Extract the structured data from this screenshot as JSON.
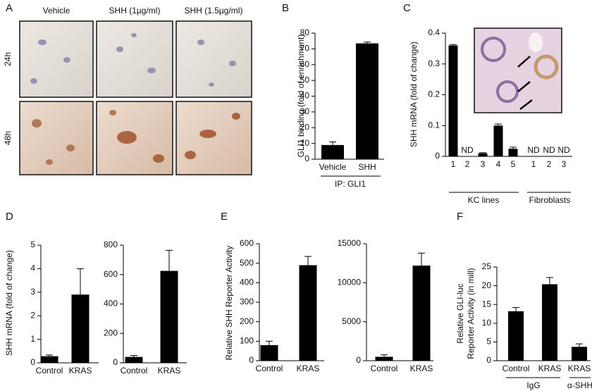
{
  "figure_images": {
    "panel": "A",
    "columns": [
      "Vehicle",
      "SHH (1µg/ml)",
      "SHH (1.5µg/ml)"
    ],
    "rows": [
      "24h",
      "48h"
    ]
  },
  "chart_data": [
    {
      "type": "bar",
      "panel": "B",
      "ylabel": "GLI1 binding (fold of enrichment)",
      "xlabel": "IP: GLI1",
      "categories": [
        "Vehicle",
        "SHH"
      ],
      "values": [
        9,
        73.5
      ],
      "errors": [
        2,
        0.8
      ],
      "color": "#000000",
      "ylim": [
        0,
        80
      ],
      "yticks": [
        0,
        10,
        20,
        30,
        40,
        50,
        60,
        70,
        80
      ]
    },
    {
      "type": "bar",
      "panel": "C",
      "ylabel": "SHH  mRNA (fold of change)",
      "categories": [
        "1",
        "2",
        "3",
        "4",
        "5",
        "1",
        "2",
        "3"
      ],
      "values": [
        0.36,
        null,
        0.01,
        0.1,
        0.025,
        null,
        null,
        null
      ],
      "value_labels": [
        null,
        "ND",
        null,
        null,
        null,
        "ND",
        "ND",
        "ND"
      ],
      "errors": [
        0.003,
        null,
        0.002,
        0.005,
        0.005,
        null,
        null,
        null
      ],
      "groups": [
        "KC lines",
        "Fibroblasts"
      ],
      "color": "#000000",
      "ylim": [
        0,
        0.4
      ],
      "yticks": [
        0,
        0.1,
        0.2,
        0.3,
        0.4
      ]
    },
    {
      "type": "bar",
      "panel": "D",
      "ylabel": "SHH  mRNA (fold of change)",
      "categories": [
        "Control",
        "KRAS"
      ],
      "values": [
        0.28,
        2.9
      ],
      "errors": [
        0.05,
        1.1
      ],
      "color": "#000000",
      "ylim": [
        0,
        5
      ],
      "yticks": [
        0,
        1,
        2,
        3,
        4,
        5
      ]
    },
    {
      "type": "bar",
      "categories": [
        "Control",
        "KRAS"
      ],
      "values": [
        40,
        625
      ],
      "errors": [
        10,
        140
      ],
      "color": "#000000",
      "ylim": [
        0,
        800
      ],
      "yticks": [
        0,
        200,
        400,
        600,
        800
      ]
    },
    {
      "type": "bar",
      "panel": "E",
      "ylabel": "Relative SHH Reporter Activity",
      "categories": [
        "Control",
        "KRAS"
      ],
      "values": [
        80,
        490
      ],
      "errors": [
        20,
        45
      ],
      "color": "#000000",
      "ylim": [
        0,
        600
      ],
      "yticks": [
        0,
        100,
        200,
        300,
        400,
        500,
        600
      ]
    },
    {
      "type": "bar",
      "categories": [
        "Control",
        "KRAS"
      ],
      "values": [
        500,
        12200
      ],
      "errors": [
        250,
        1600
      ],
      "color": "#000000",
      "ylim": [
        0,
        15000
      ],
      "yticks": [
        0,
        5000,
        10000,
        15000
      ]
    },
    {
      "type": "bar",
      "panel": "F",
      "ylabel": [
        "Relative GLI-luc",
        "Reporter Activity (in mill)"
      ],
      "categories": [
        "Control",
        "KRAS",
        "KRAS"
      ],
      "values": [
        13.2,
        20.4,
        3.7
      ],
      "errors": [
        1,
        1.8,
        0.8
      ],
      "groups": [
        "IgG",
        "α-SHH"
      ],
      "color": "#000000",
      "ylim": [
        0,
        25
      ],
      "yticks": [
        0,
        5,
        10,
        15,
        20,
        25
      ]
    }
  ]
}
